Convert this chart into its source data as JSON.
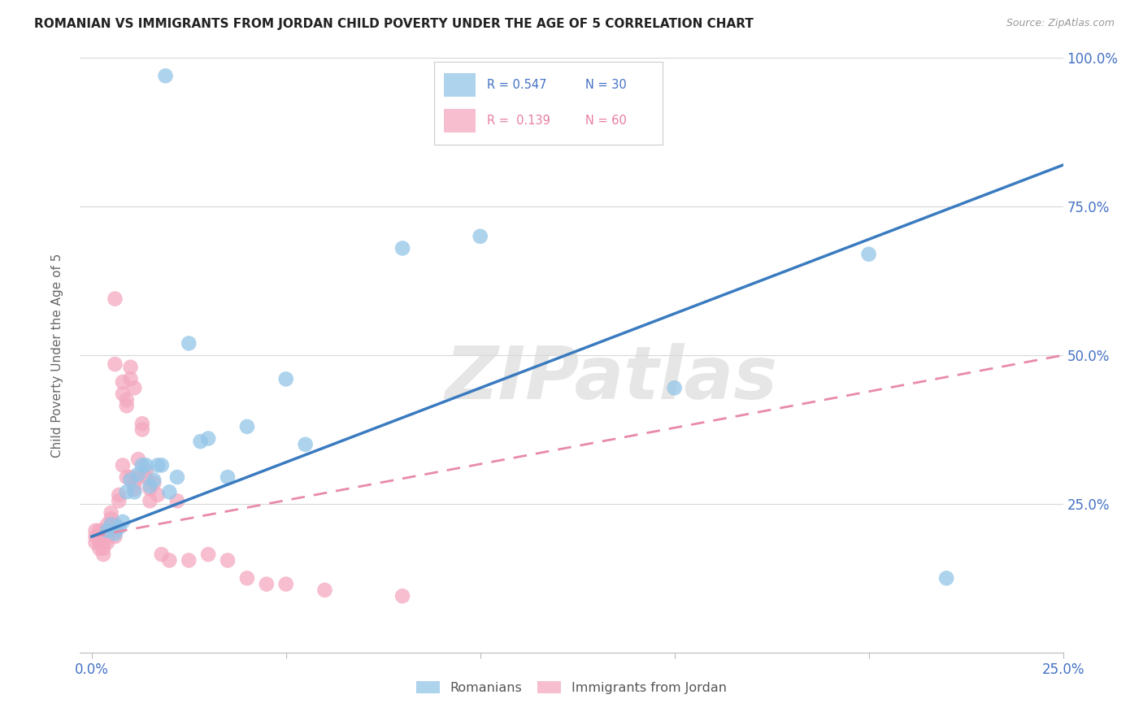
{
  "title": "ROMANIAN VS IMMIGRANTS FROM JORDAN CHILD POVERTY UNDER THE AGE OF 5 CORRELATION CHART",
  "source": "Source: ZipAtlas.com",
  "ylabel": "Child Poverty Under the Age of 5",
  "xlim": [
    0.0,
    0.25
  ],
  "ylim": [
    0.0,
    1.0
  ],
  "blue_R": "0.547",
  "blue_N": "30",
  "pink_R": "0.139",
  "pink_N": "60",
  "blue_color": "#93c5e8",
  "pink_color": "#f4a9c0",
  "blue_line_color": "#3a7bbf",
  "pink_line_color": "#e88aa8",
  "watermark": "ZIPatlas",
  "watermark_color": "#c8c8c8",
  "legend_label_blue": "Romanians",
  "legend_label_pink": "Immigrants from Jordan",
  "blue_line_x": [
    0.0,
    0.25
  ],
  "blue_line_y": [
    0.195,
    0.82
  ],
  "pink_line_x": [
    0.0,
    0.25
  ],
  "pink_line_y": [
    0.195,
    0.5
  ],
  "blue_scatter_x": [
    0.004,
    0.005,
    0.006,
    0.007,
    0.008,
    0.009,
    0.01,
    0.011,
    0.012,
    0.013,
    0.014,
    0.015,
    0.016,
    0.017,
    0.018,
    0.019,
    0.02,
    0.022,
    0.025,
    0.028,
    0.03,
    0.035,
    0.04,
    0.05,
    0.055,
    0.08,
    0.1,
    0.15,
    0.2,
    0.22
  ],
  "blue_scatter_y": [
    0.205,
    0.215,
    0.2,
    0.21,
    0.22,
    0.27,
    0.29,
    0.27,
    0.3,
    0.315,
    0.315,
    0.28,
    0.29,
    0.315,
    0.315,
    0.97,
    0.27,
    0.295,
    0.52,
    0.355,
    0.36,
    0.295,
    0.38,
    0.46,
    0.35,
    0.68,
    0.7,
    0.445,
    0.67,
    0.125
  ],
  "pink_scatter_x": [
    0.001,
    0.001,
    0.001,
    0.002,
    0.002,
    0.002,
    0.002,
    0.003,
    0.003,
    0.003,
    0.003,
    0.003,
    0.004,
    0.004,
    0.004,
    0.004,
    0.005,
    0.005,
    0.005,
    0.005,
    0.006,
    0.006,
    0.006,
    0.006,
    0.006,
    0.007,
    0.007,
    0.008,
    0.008,
    0.008,
    0.009,
    0.009,
    0.009,
    0.01,
    0.01,
    0.01,
    0.011,
    0.011,
    0.011,
    0.012,
    0.012,
    0.013,
    0.013,
    0.014,
    0.014,
    0.015,
    0.015,
    0.016,
    0.017,
    0.018,
    0.02,
    0.022,
    0.025,
    0.03,
    0.035,
    0.04,
    0.045,
    0.05,
    0.06,
    0.08
  ],
  "pink_scatter_y": [
    0.205,
    0.195,
    0.185,
    0.205,
    0.195,
    0.185,
    0.175,
    0.205,
    0.195,
    0.185,
    0.175,
    0.165,
    0.215,
    0.205,
    0.195,
    0.185,
    0.235,
    0.225,
    0.215,
    0.205,
    0.595,
    0.485,
    0.215,
    0.205,
    0.195,
    0.265,
    0.255,
    0.455,
    0.435,
    0.315,
    0.425,
    0.415,
    0.295,
    0.48,
    0.46,
    0.295,
    0.445,
    0.285,
    0.275,
    0.325,
    0.295,
    0.385,
    0.375,
    0.305,
    0.295,
    0.275,
    0.255,
    0.285,
    0.265,
    0.165,
    0.155,
    0.255,
    0.155,
    0.165,
    0.155,
    0.125,
    0.115,
    0.115,
    0.105,
    0.095
  ]
}
